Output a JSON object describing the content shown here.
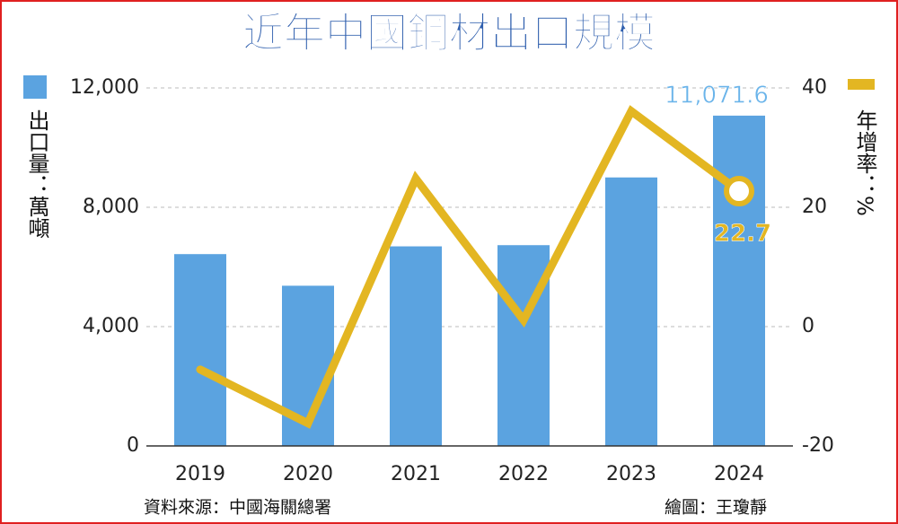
{
  "chart_data": {
    "type": "bar-line",
    "title": "近年中國鋼材出口規模",
    "y_label": "出口量：萬噸",
    "y2_label": "年增率：%",
    "categories": [
      "2019",
      "2020",
      "2021",
      "2022",
      "2023",
      "2024"
    ],
    "series": [
      {
        "type": "bar",
        "color": "#5ba3e0",
        "values": [
          6430,
          5370,
          6690,
          6730,
          9000,
          11071.6
        ],
        "value_labels": [
          null,
          null,
          null,
          null,
          null,
          "11,071.6"
        ]
      },
      {
        "type": "line",
        "axis": "y2",
        "color": "#e3b622",
        "values": [
          -7.2,
          -16.2,
          24.8,
          1.1,
          36.1,
          22.7
        ],
        "value_labels": [
          null,
          null,
          null,
          null,
          null,
          "22.7"
        ]
      }
    ],
    "ylim": [
      0,
      12000
    ],
    "yticks": [
      0,
      {
        "value": 4000,
        "label": "4,000"
      },
      {
        "value": 8000,
        "label": "8,000"
      },
      {
        "value": 12000,
        "label": "12,000"
      }
    ],
    "y2lim": [
      -20,
      40
    ],
    "y2ticks": [
      -20,
      0,
      20,
      40
    ],
    "grid": true,
    "source": "資料來源：中國海關總署",
    "credit": "繪圖：王瓊靜"
  }
}
